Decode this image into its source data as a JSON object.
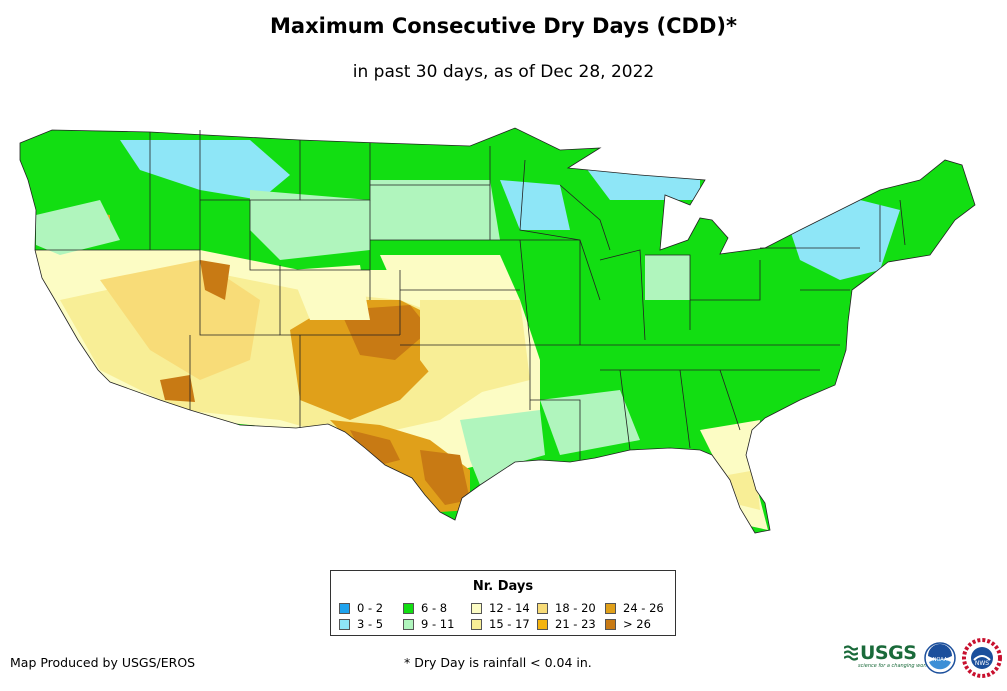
{
  "title": "Maximum Consecutive Dry Days (CDD)*",
  "subtitle": "in past 30 days, as of Dec 28, 2022",
  "legend": {
    "title": "Nr. Days",
    "items": [
      {
        "label": "0 - 2",
        "color": "#1fa3ee"
      },
      {
        "label": "3 - 5",
        "color": "#8ee6f7"
      },
      {
        "label": "6 - 8",
        "color": "#12de12"
      },
      {
        "label": "9 - 11",
        "color": "#b0f5bd"
      },
      {
        "label": "12 - 14",
        "color": "#fcfcc4"
      },
      {
        "label": "15 - 17",
        "color": "#f8ee96"
      },
      {
        "label": "18 - 20",
        "color": "#f8dc78"
      },
      {
        "label": "21 - 23",
        "color": "#f5b410"
      },
      {
        "label": "24 - 26",
        "color": "#e0a01a"
      },
      {
        "label": "> 26",
        "color": "#c87a14"
      }
    ]
  },
  "credit": "Map Produced by USGS/EROS",
  "footnote": "* Dry Day is rainfall < 0.04 in.",
  "logos": {
    "usgs_text": "USGS",
    "usgs_tagline": "science for a changing world",
    "noaa_text": "NOAA",
    "nws_text": "NWS"
  }
}
